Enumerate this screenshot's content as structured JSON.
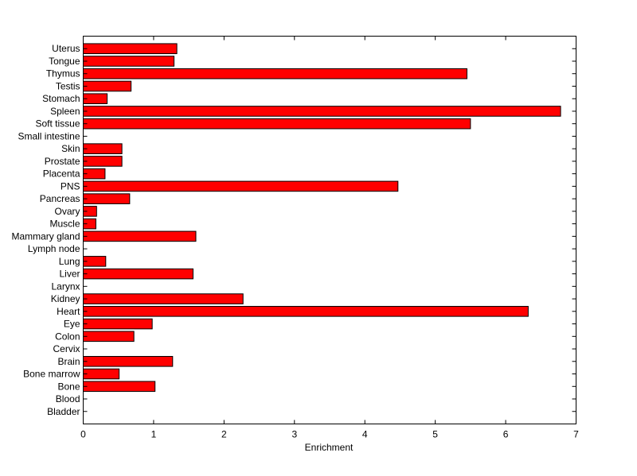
{
  "chart_data": {
    "type": "bar",
    "orientation": "horizontal",
    "title": "",
    "xlabel": "Enrichment",
    "ylabel": "",
    "xlim": [
      0,
      7
    ],
    "xticks": [
      "0",
      "1",
      "2",
      "3",
      "4",
      "5",
      "6",
      "7"
    ],
    "bar_color": "#ff0000",
    "categories": [
      "Uterus",
      "Tongue",
      "Thymus",
      "Testis",
      "Stomach",
      "Spleen",
      "Soft tissue",
      "Small intestine",
      "Skin",
      "Prostate",
      "Placenta",
      "PNS",
      "Pancreas",
      "Ovary",
      "Muscle",
      "Mammary gland",
      "Lymph node",
      "Lung",
      "Liver",
      "Larynx",
      "Kidney",
      "Heart",
      "Eye",
      "Colon",
      "Cervix",
      "Brain",
      "Bone marrow",
      "Bone",
      "Blood",
      "Bladder"
    ],
    "values": [
      1.33,
      1.29,
      5.45,
      0.68,
      0.34,
      6.78,
      5.5,
      0,
      0.55,
      0.55,
      0.31,
      4.47,
      0.66,
      0.19,
      0.18,
      1.6,
      0,
      0.32,
      1.56,
      0,
      2.27,
      6.32,
      0.98,
      0.72,
      0,
      1.27,
      0.51,
      1.02,
      0,
      0
    ]
  }
}
